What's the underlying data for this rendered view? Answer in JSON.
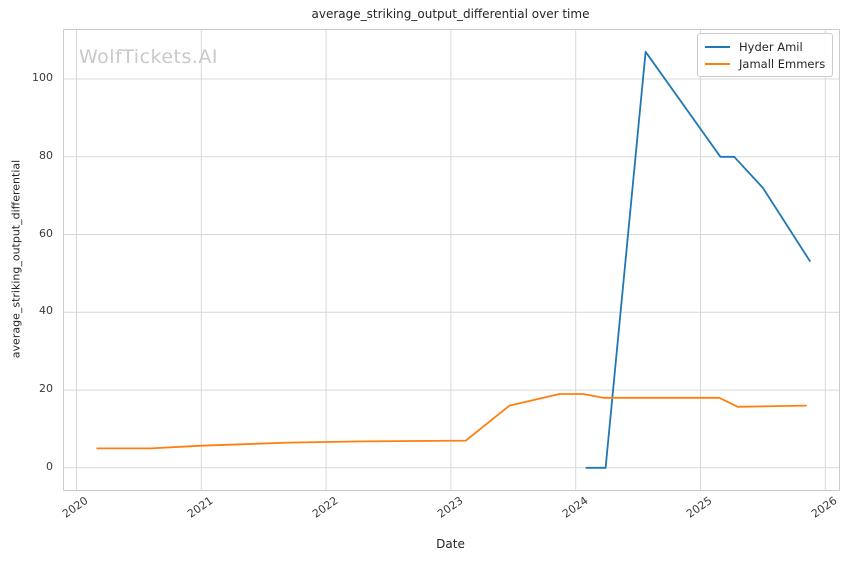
{
  "figure": {
    "watermark": "WolfTickets.AI",
    "watermark_color": "#c9c9c9",
    "background": "#ffffff"
  },
  "chart_data": {
    "type": "line",
    "title": "average_striking_output_differential over time",
    "xlabel": "Date",
    "ylabel": "average_striking_output_differential",
    "x_ticks": [
      2020,
      2021,
      2022,
      2023,
      2024,
      2025,
      2026
    ],
    "y_ticks": [
      0,
      20,
      40,
      60,
      80,
      100
    ],
    "xlim": [
      2019.9,
      2026.11
    ],
    "ylim": [
      -5.7,
      112.6
    ],
    "grid": true,
    "legend": {
      "position": "upper right",
      "entries": [
        "Hyder Amil",
        "Jamall Emmers"
      ]
    },
    "series": [
      {
        "name": "Hyder Amil",
        "color": "#1f77b4",
        "x": [
          2024.08,
          2024.24,
          2024.56,
          2025.16,
          2025.27,
          2025.5,
          2025.88
        ],
        "y": [
          0,
          0,
          107,
          80,
          80,
          72,
          53
        ]
      },
      {
        "name": "Jamall Emmers",
        "color": "#ff7f0e",
        "x": [
          2020.16,
          2020.6,
          2021.0,
          2021.7,
          2022.3,
          2023.12,
          2023.47,
          2023.87,
          2024.06,
          2024.22,
          2025.15,
          2025.3,
          2025.85
        ],
        "y": [
          5,
          5,
          5.7,
          6.5,
          6.8,
          7,
          16,
          19,
          19,
          18,
          18,
          15.7,
          16
        ]
      }
    ],
    "colors": {
      "grid": "#d9d9d9",
      "spine": "#cccccc",
      "tick_text": "#3b3b3b",
      "title_text": "#262626"
    }
  }
}
